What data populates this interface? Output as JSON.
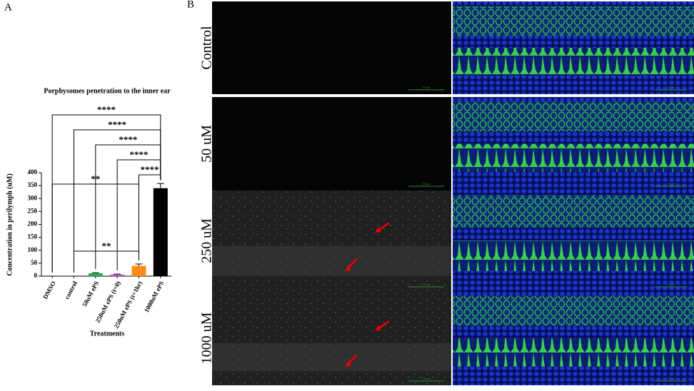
{
  "chart_data": {
    "type": "bar",
    "title": "Porphysomes penetration to the inner ear",
    "x_label": "Treatments",
    "y_label": "Concentration in perilymph (uM)",
    "categories": [
      "DMSO",
      "control",
      "50uM ePS",
      "250uM ePS (t=0)",
      "250uM ePS (t=1hr)",
      "1000uM ePS"
    ],
    "values": [
      0,
      0,
      11,
      6,
      40,
      340
    ],
    "errors": [
      0,
      0,
      2,
      2,
      7,
      18
    ],
    "colors": [
      "#000000",
      "#000000",
      "#22b14c",
      "#b84fd0",
      "#ff8c1a",
      "#000000"
    ],
    "ylim": [
      0,
      400
    ],
    "yticks": [
      0,
      50,
      100,
      150,
      200,
      250,
      300,
      350,
      400
    ],
    "comparisons": [
      {
        "groups": [
          "DMSO",
          "1000uM ePS"
        ],
        "label": "****"
      },
      {
        "groups": [
          "control",
          "1000uM ePS"
        ],
        "label": "****"
      },
      {
        "groups": [
          "50uM ePS",
          "1000uM ePS"
        ],
        "label": "****"
      },
      {
        "groups": [
          "250uM ePS (t=0)",
          "1000uM ePS"
        ],
        "label": "****"
      },
      {
        "groups": [
          "250uM ePS (t=1hr)",
          "1000uM ePS"
        ],
        "label": "****"
      },
      {
        "groups": [
          "DMSO",
          "250uM ePS (t=1hr)"
        ],
        "label": "**"
      },
      {
        "groups": [
          "control",
          "250uM ePS (t=1hr)"
        ],
        "label": "**"
      }
    ]
  },
  "panel_labels": [
    "A",
    "B"
  ],
  "microscopy": {
    "rows": [
      "Control",
      "50 uM",
      "250 uM",
      "1000 uM"
    ],
    "scale_bar": "50 µm"
  }
}
